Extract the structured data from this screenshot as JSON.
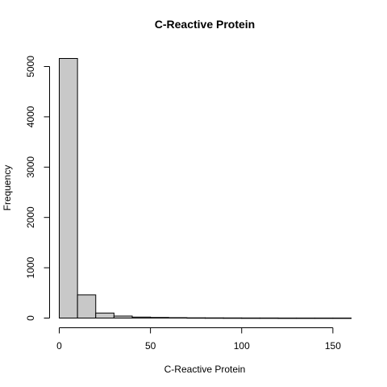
{
  "chart_data": {
    "type": "bar",
    "title": "C-Reactive Protein",
    "xlabel": "C-Reactive Protein",
    "ylabel": "Frequency",
    "bin_edges": [
      0,
      10,
      20,
      30,
      40,
      50,
      60,
      70,
      80,
      90,
      100,
      110,
      120,
      130,
      140,
      150,
      160
    ],
    "values": [
      5160,
      460,
      100,
      40,
      20,
      12,
      8,
      5,
      4,
      3,
      2,
      2,
      1,
      1,
      1,
      1
    ],
    "x_ticks": [
      0,
      50,
      100,
      150
    ],
    "y_ticks": [
      0,
      1000,
      2000,
      3000,
      4000,
      5000
    ],
    "xlim": [
      0,
      160
    ],
    "ylim": [
      0,
      5200
    ],
    "bar_fill": "#c8c8c8",
    "bar_stroke": "#000000",
    "grid": false
  }
}
